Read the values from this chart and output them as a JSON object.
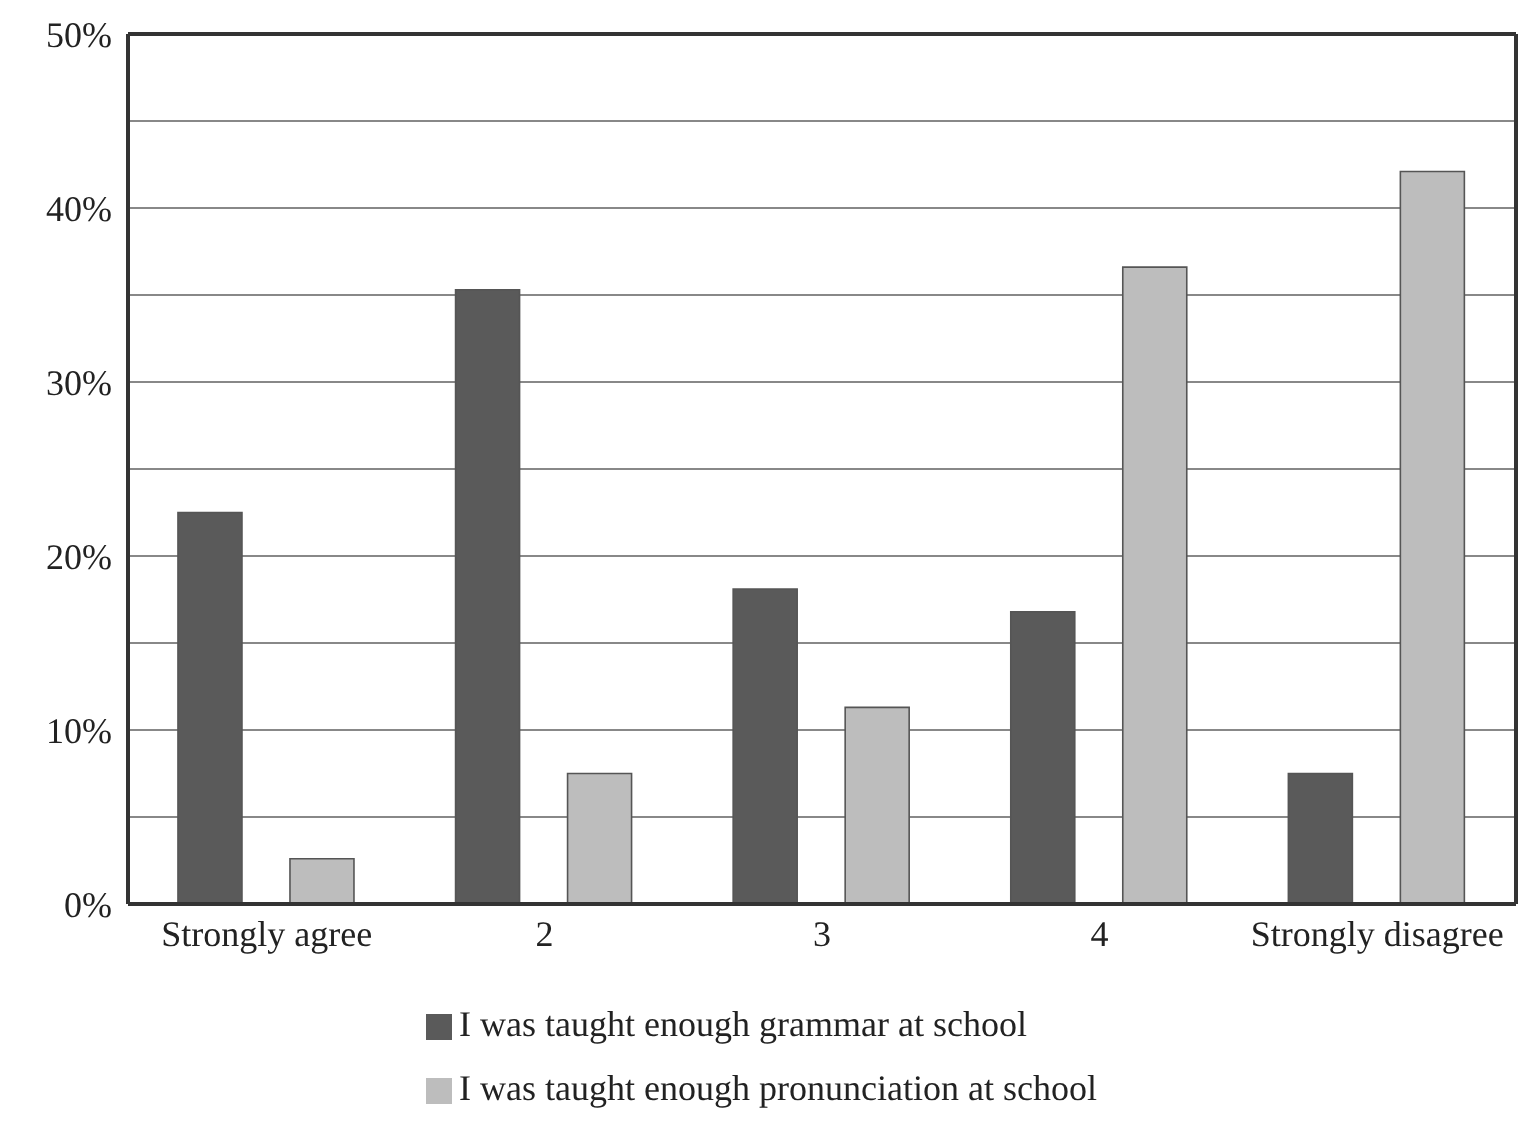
{
  "chart_data": {
    "type": "bar",
    "categories": [
      "Strongly agree",
      "2",
      "3",
      "4",
      "Strongly disagree"
    ],
    "series": [
      {
        "name": "I was taught enough grammar at school",
        "color": "#5a5a5a",
        "values": [
          22.5,
          35.3,
          18.1,
          16.8,
          7.5
        ]
      },
      {
        "name": "I was taught enough pronunciation at school",
        "color": "#bdbdbd",
        "values": [
          2.6,
          7.5,
          11.3,
          36.6,
          42.1
        ]
      }
    ],
    "ylim": [
      0,
      50
    ],
    "yticks": [
      {
        "value": 0,
        "label": "0%"
      },
      {
        "value": 5,
        "label": null
      },
      {
        "value": 10,
        "label": "10%"
      },
      {
        "value": 15,
        "label": null
      },
      {
        "value": 20,
        "label": "20%"
      },
      {
        "value": 25,
        "label": null
      },
      {
        "value": 30,
        "label": "30%"
      },
      {
        "value": 35,
        "label": null
      },
      {
        "value": 40,
        "label": "40%"
      },
      {
        "value": 45,
        "label": null
      },
      {
        "value": 50,
        "label": "50%"
      }
    ],
    "grid": "y",
    "legend": "bottom"
  }
}
